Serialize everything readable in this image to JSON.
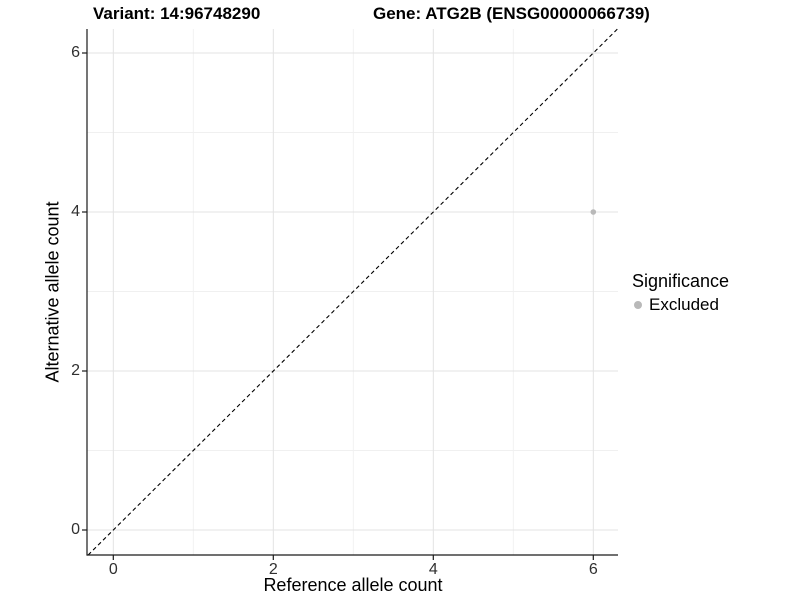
{
  "title": {
    "variant": "Variant: 14:96748290",
    "gene": "Gene: ATG2B (ENSG00000066739)"
  },
  "chart_data": {
    "type": "scatter",
    "title": "Variant: 14:96748290   |   Gene: ATG2B (ENSG00000066739)",
    "xlabel": "Reference allele count",
    "ylabel": "Alternative allele count",
    "xlim": [
      -0.33,
      6.33
    ],
    "ylim": [
      -0.32,
      6.3
    ],
    "x_ticks": [
      0,
      2,
      4,
      6
    ],
    "y_ticks": [
      0,
      2,
      4,
      6
    ],
    "x_minor_ticks": [
      1,
      3,
      5
    ],
    "y_minor_ticks": [
      1,
      3,
      5
    ],
    "grid": true,
    "abline": {
      "slope": 1,
      "intercept": 0,
      "style": "dashed",
      "color": "#000000"
    },
    "series": [
      {
        "name": "Excluded",
        "color": "#b9b9b9",
        "points": [
          {
            "x": 6,
            "y": 4
          }
        ]
      }
    ],
    "legend": {
      "title": "Significance",
      "position": "right",
      "items": [
        {
          "label": "Excluded",
          "color": "#b9b9b9"
        }
      ]
    }
  },
  "colors": {
    "background": "#ffffff",
    "grid_major": "#e3e3e3",
    "grid_minor": "#f0f0f0",
    "axis_line": "#1a1a1a",
    "tick_text": "#303030",
    "point": "#b9b9b9"
  }
}
